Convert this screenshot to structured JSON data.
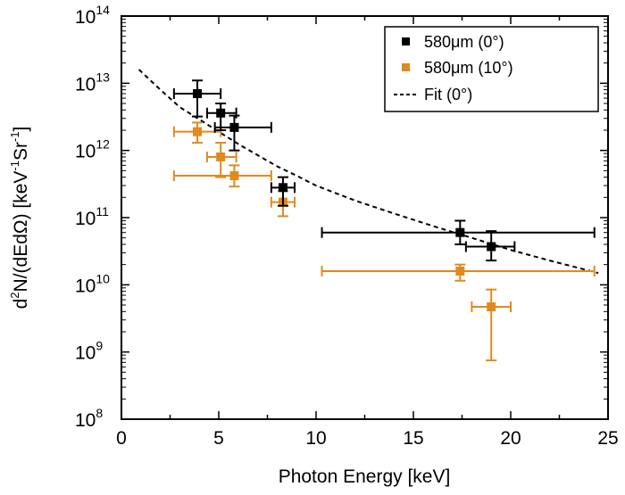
{
  "chart_data": {
    "type": "scatter",
    "xlabel": "Photon Energy [keV]",
    "ylabel": {
      "d_base": "d",
      "d_sup": "2",
      "n_part": "N/(dEd",
      "omega": "Ω",
      "close_unit": ") [keV",
      "kev_sup": "-1",
      "sr": "Sr",
      "sr_sup": "-1",
      "end": "]"
    },
    "xlim": [
      0,
      25
    ],
    "ylim_log10": [
      8,
      14
    ],
    "y_scale": "log",
    "x_ticks": [
      "0",
      "5",
      "10",
      "15",
      "20",
      "25"
    ],
    "y_ticks": [
      {
        "base": "10",
        "exp": "8"
      },
      {
        "base": "10",
        "exp": "9"
      },
      {
        "base": "10",
        "exp": "10"
      },
      {
        "base": "10",
        "exp": "11"
      },
      {
        "base": "10",
        "exp": "12"
      },
      {
        "base": "10",
        "exp": "13"
      },
      {
        "base": "10",
        "exp": "14"
      }
    ],
    "legend_position": "top-right",
    "series": [
      {
        "name": "580μm (0°)",
        "color": "#000000",
        "marker": "square",
        "points": [
          {
            "x": 3.9,
            "y": 7000000000000.0,
            "xerr": [
              2.7,
              5.1
            ],
            "yerr": [
              3200000000000.0,
              11000000000000.0
            ]
          },
          {
            "x": 5.1,
            "y": 3600000000000.0,
            "xerr": [
              4.4,
              5.9
            ],
            "yerr": [
              2000000000000.0,
              5000000000000.0
            ]
          },
          {
            "x": 5.8,
            "y": 2200000000000.0,
            "xerr": [
              4.8,
              7.7
            ],
            "yerr": [
              1000000000000.0,
              3300000000000.0
            ]
          },
          {
            "x": 8.3,
            "y": 280000000000.0,
            "xerr": [
              7.7,
              8.9
            ],
            "yerr": [
              150000000000.0,
              400000000000.0
            ]
          },
          {
            "x": 17.4,
            "y": 60000000000.0,
            "xerr": [
              10.3,
              24.3
            ],
            "yerr": [
              40000000000.0,
              90000000000.0
            ]
          },
          {
            "x": 19.0,
            "y": 37000000000.0,
            "xerr": [
              17.7,
              20.2
            ],
            "yerr": [
              23000000000.0,
              63000000000.0
            ]
          }
        ]
      },
      {
        "name": "580μm (10°)",
        "color": "#e08a1e",
        "marker": "square",
        "points": [
          {
            "x": 3.9,
            "y": 1900000000000.0,
            "xerr": [
              2.7,
              5.1
            ],
            "yerr": [
              1300000000000.0,
              2600000000000.0
            ]
          },
          {
            "x": 5.1,
            "y": 800000000000.0,
            "xerr": [
              4.4,
              5.9
            ],
            "yerr": [
              400000000000.0,
              1300000000000.0
            ]
          },
          {
            "x": 5.8,
            "y": 420000000000.0,
            "xerr": [
              2.7,
              7.7
            ],
            "yerr": [
              290000000000.0,
              600000000000.0
            ]
          },
          {
            "x": 8.3,
            "y": 170000000000.0,
            "xerr": [
              7.7,
              8.9
            ],
            "yerr": [
              105000000000.0,
              250000000000.0
            ]
          },
          {
            "x": 17.4,
            "y": 16000000000.0,
            "xerr": [
              10.3,
              24.3
            ],
            "yerr": [
              11500000000.0,
              20000000000.0
            ]
          },
          {
            "x": 19.0,
            "y": 4700000000.0,
            "xerr": [
              18.0,
              20.0
            ],
            "yerr": [
              750000000.0,
              8500000000.0
            ]
          }
        ]
      },
      {
        "name": "Fit (0°)",
        "color": "#000000",
        "line_style": "dashed",
        "points": [
          {
            "x": 0.9,
            "y": 16000000000000.0
          },
          {
            "x": 2.0,
            "y": 8000000000000.0
          },
          {
            "x": 3.0,
            "y": 4400000000000.0
          },
          {
            "x": 4.0,
            "y": 2900000000000.0
          },
          {
            "x": 5.0,
            "y": 1900000000000.0
          },
          {
            "x": 6.0,
            "y": 1250000000000.0
          },
          {
            "x": 7.0,
            "y": 850000000000.0
          },
          {
            "x": 8.0,
            "y": 580000000000.0
          },
          {
            "x": 9.0,
            "y": 420000000000.0
          },
          {
            "x": 10.0,
            "y": 300000000000.0
          },
          {
            "x": 12.0,
            "y": 180000000000.0
          },
          {
            "x": 14.0,
            "y": 115000000000.0
          },
          {
            "x": 16.0,
            "y": 75000000000.0
          },
          {
            "x": 18.0,
            "y": 50000000000.0
          },
          {
            "x": 20.0,
            "y": 33000000000.0
          },
          {
            "x": 22.0,
            "y": 23000000000.0
          },
          {
            "x": 24.5,
            "y": 15000000000.0
          }
        ]
      }
    ]
  }
}
